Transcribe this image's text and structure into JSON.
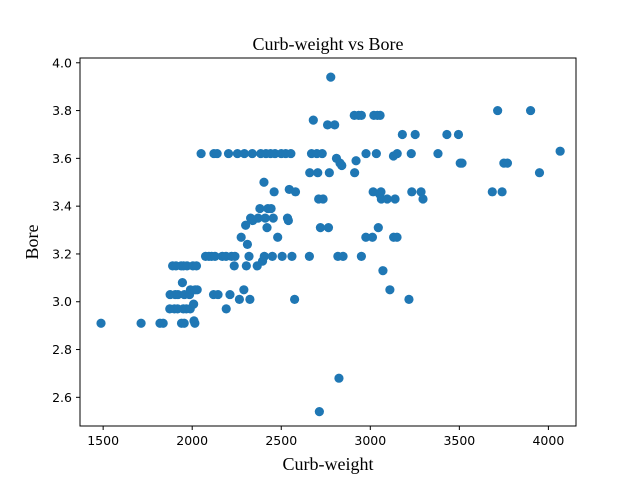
{
  "chart_data": {
    "type": "scatter",
    "title": "Curb-weight vs Bore",
    "xlabel": "Curb-weight",
    "ylabel": "Bore",
    "xlim": [
      1370,
      4155
    ],
    "ylim": [
      2.48,
      4.02
    ],
    "xticks": [
      1500,
      2000,
      2500,
      3000,
      3500,
      4000
    ],
    "yticks": [
      2.6,
      2.8,
      3.0,
      3.2,
      3.4,
      3.6,
      3.8,
      4.0
    ],
    "xtick_labels": [
      "1500",
      "2000",
      "2500",
      "3000",
      "3500",
      "4000"
    ],
    "ytick_labels": [
      "2.6",
      "2.8",
      "3.0",
      "3.2",
      "3.4",
      "3.6",
      "3.8",
      "4.0"
    ],
    "grid": false,
    "legend": "none",
    "marker_color": "#1f77b4",
    "series": [
      {
        "points": [
          [
            1488,
            2.91
          ],
          [
            1713,
            2.91
          ],
          [
            1819,
            2.91
          ],
          [
            1837,
            2.91
          ],
          [
            1874,
            2.97
          ],
          [
            1876,
            3.03
          ],
          [
            1890,
            3.15
          ],
          [
            1900,
            2.97
          ],
          [
            1905,
            3.03
          ],
          [
            1909,
            3.15
          ],
          [
            1918,
            2.97
          ],
          [
            1920,
            3.03
          ],
          [
            1938,
            3.15
          ],
          [
            1940,
            2.91
          ],
          [
            1945,
            3.08
          ],
          [
            1950,
            2.97
          ],
          [
            1951,
            3.15
          ],
          [
            1955,
            2.91
          ],
          [
            1956,
            3.03
          ],
          [
            1967,
            2.97
          ],
          [
            1971,
            3.15
          ],
          [
            1985,
            3.03
          ],
          [
            1989,
            2.97
          ],
          [
            1990,
            3.05
          ],
          [
            2004,
            3.15
          ],
          [
            2008,
            2.99
          ],
          [
            2010,
            2.92
          ],
          [
            2015,
            2.91
          ],
          [
            2017,
            3.05
          ],
          [
            2024,
            3.15
          ],
          [
            2028,
            3.05
          ],
          [
            2050,
            3.62
          ],
          [
            2075,
            3.19
          ],
          [
            2094,
            3.19
          ],
          [
            2109,
            3.19
          ],
          [
            2120,
            3.03
          ],
          [
            2122,
            3.62
          ],
          [
            2128,
            3.19
          ],
          [
            2140,
            3.62
          ],
          [
            2145,
            3.03
          ],
          [
            2169,
            3.19
          ],
          [
            2190,
            3.19
          ],
          [
            2191,
            2.97
          ],
          [
            2204,
            3.62
          ],
          [
            2212,
            3.03
          ],
          [
            2221,
            3.19
          ],
          [
            2236,
            3.15
          ],
          [
            2240,
            3.19
          ],
          [
            2254,
            3.62
          ],
          [
            2265,
            3.01
          ],
          [
            2275,
            3.27
          ],
          [
            2290,
            3.05
          ],
          [
            2293,
            3.62
          ],
          [
            2300,
            3.32
          ],
          [
            2304,
            3.15
          ],
          [
            2310,
            3.24
          ],
          [
            2319,
            3.19
          ],
          [
            2324,
            3.01
          ],
          [
            2328,
            3.35
          ],
          [
            2337,
            3.62
          ],
          [
            2340,
            3.34
          ],
          [
            2365,
            3.15
          ],
          [
            2370,
            3.35
          ],
          [
            2380,
            3.39
          ],
          [
            2385,
            3.62
          ],
          [
            2395,
            3.17
          ],
          [
            2403,
            3.5
          ],
          [
            2405,
            3.19
          ],
          [
            2410,
            3.35
          ],
          [
            2414,
            3.62
          ],
          [
            2420,
            3.31
          ],
          [
            2425,
            3.39
          ],
          [
            2440,
            3.62
          ],
          [
            2443,
            3.39
          ],
          [
            2450,
            3.19
          ],
          [
            2455,
            3.35
          ],
          [
            2460,
            3.46
          ],
          [
            2465,
            3.62
          ],
          [
            2480,
            3.27
          ],
          [
            2500,
            3.62
          ],
          [
            2505,
            3.19
          ],
          [
            2525,
            3.62
          ],
          [
            2535,
            3.35
          ],
          [
            2540,
            3.34
          ],
          [
            2545,
            3.47
          ],
          [
            2554,
            3.62
          ],
          [
            2560,
            3.19
          ],
          [
            2575,
            3.01
          ],
          [
            2580,
            3.46
          ],
          [
            2658,
            3.19
          ],
          [
            2660,
            3.54
          ],
          [
            2670,
            3.62
          ],
          [
            2680,
            3.76
          ],
          [
            2700,
            3.62
          ],
          [
            2705,
            3.54
          ],
          [
            2710,
            3.43
          ],
          [
            2714,
            2.54
          ],
          [
            2720,
            3.31
          ],
          [
            2730,
            3.62
          ],
          [
            2735,
            3.43
          ],
          [
            2760,
            3.74
          ],
          [
            2765,
            3.31
          ],
          [
            2770,
            3.54
          ],
          [
            2778,
            3.94
          ],
          [
            2800,
            3.74
          ],
          [
            2810,
            3.6
          ],
          [
            2818,
            3.19
          ],
          [
            2824,
            2.68
          ],
          [
            2830,
            3.58
          ],
          [
            2840,
            3.57
          ],
          [
            2847,
            3.19
          ],
          [
            2910,
            3.78
          ],
          [
            2912,
            3.54
          ],
          [
            2920,
            3.59
          ],
          [
            2935,
            3.78
          ],
          [
            2950,
            3.78
          ],
          [
            2950,
            3.19
          ],
          [
            2975,
            3.27
          ],
          [
            2976,
            3.62
          ],
          [
            3012,
            3.27
          ],
          [
            3016,
            3.46
          ],
          [
            3020,
            3.78
          ],
          [
            3034,
            3.62
          ],
          [
            3040,
            3.78
          ],
          [
            3045,
            3.31
          ],
          [
            3053,
            3.45
          ],
          [
            3055,
            3.78
          ],
          [
            3060,
            3.46
          ],
          [
            3062,
            3.43
          ],
          [
            3071,
            3.13
          ],
          [
            3095,
            3.43
          ],
          [
            3110,
            3.05
          ],
          [
            3130,
            3.61
          ],
          [
            3131,
            3.27
          ],
          [
            3139,
            3.43
          ],
          [
            3150,
            3.27
          ],
          [
            3151,
            3.62
          ],
          [
            3180,
            3.7
          ],
          [
            3217,
            3.01
          ],
          [
            3230,
            3.62
          ],
          [
            3233,
            3.46
          ],
          [
            3252,
            3.7
          ],
          [
            3285,
            3.46
          ],
          [
            3296,
            3.43
          ],
          [
            3380,
            3.62
          ],
          [
            3430,
            3.7
          ],
          [
            3495,
            3.7
          ],
          [
            3505,
            3.58
          ],
          [
            3515,
            3.58
          ],
          [
            3685,
            3.46
          ],
          [
            3715,
            3.8
          ],
          [
            3740,
            3.46
          ],
          [
            3750,
            3.58
          ],
          [
            3770,
            3.58
          ],
          [
            3900,
            3.8
          ],
          [
            3950,
            3.54
          ],
          [
            4066,
            3.63
          ]
        ]
      }
    ]
  }
}
